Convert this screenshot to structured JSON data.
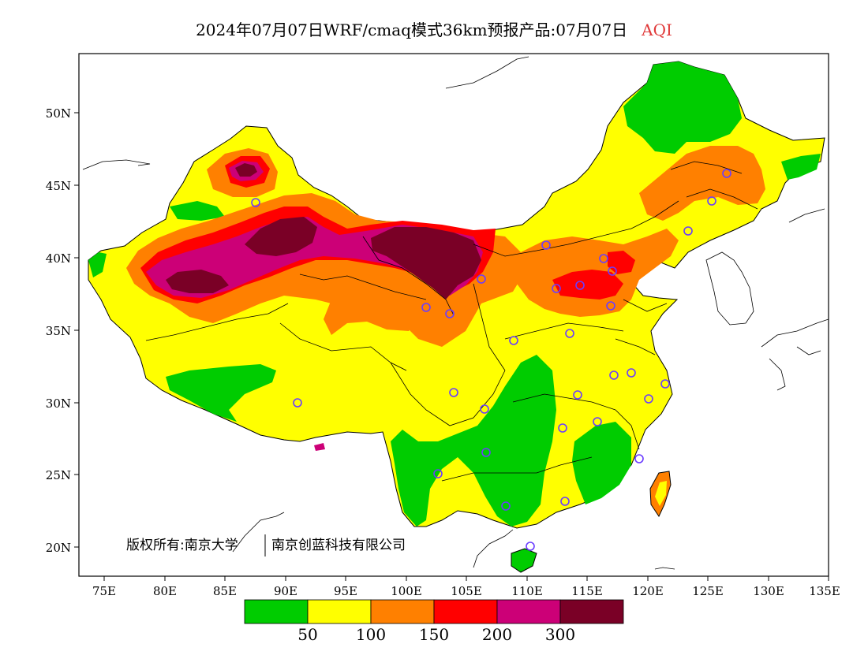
{
  "title": {
    "main": "2024年07月07日WRF/cmaq模式36km预报产品:07月07日",
    "variable": "AQI"
  },
  "axes": {
    "lat_labels": [
      "50N",
      "45N",
      "40N",
      "35N",
      "30N",
      "25N",
      "20N"
    ],
    "lon_labels": [
      "75E",
      "80E",
      "85E",
      "90E",
      "95E",
      "100E",
      "105E",
      "110E",
      "115E",
      "120E",
      "125E",
      "130E",
      "135E"
    ]
  },
  "copyright": {
    "part1": "版权所有:南京大学",
    "part2": "南京创蓝科技有限公司"
  },
  "legend": {
    "colors": [
      "#00cc00",
      "#ffff00",
      "#ff8000",
      "#ff0000",
      "#cc0077",
      "#7a0026"
    ],
    "labels": [
      "50",
      "100",
      "150",
      "200",
      "300"
    ]
  }
}
